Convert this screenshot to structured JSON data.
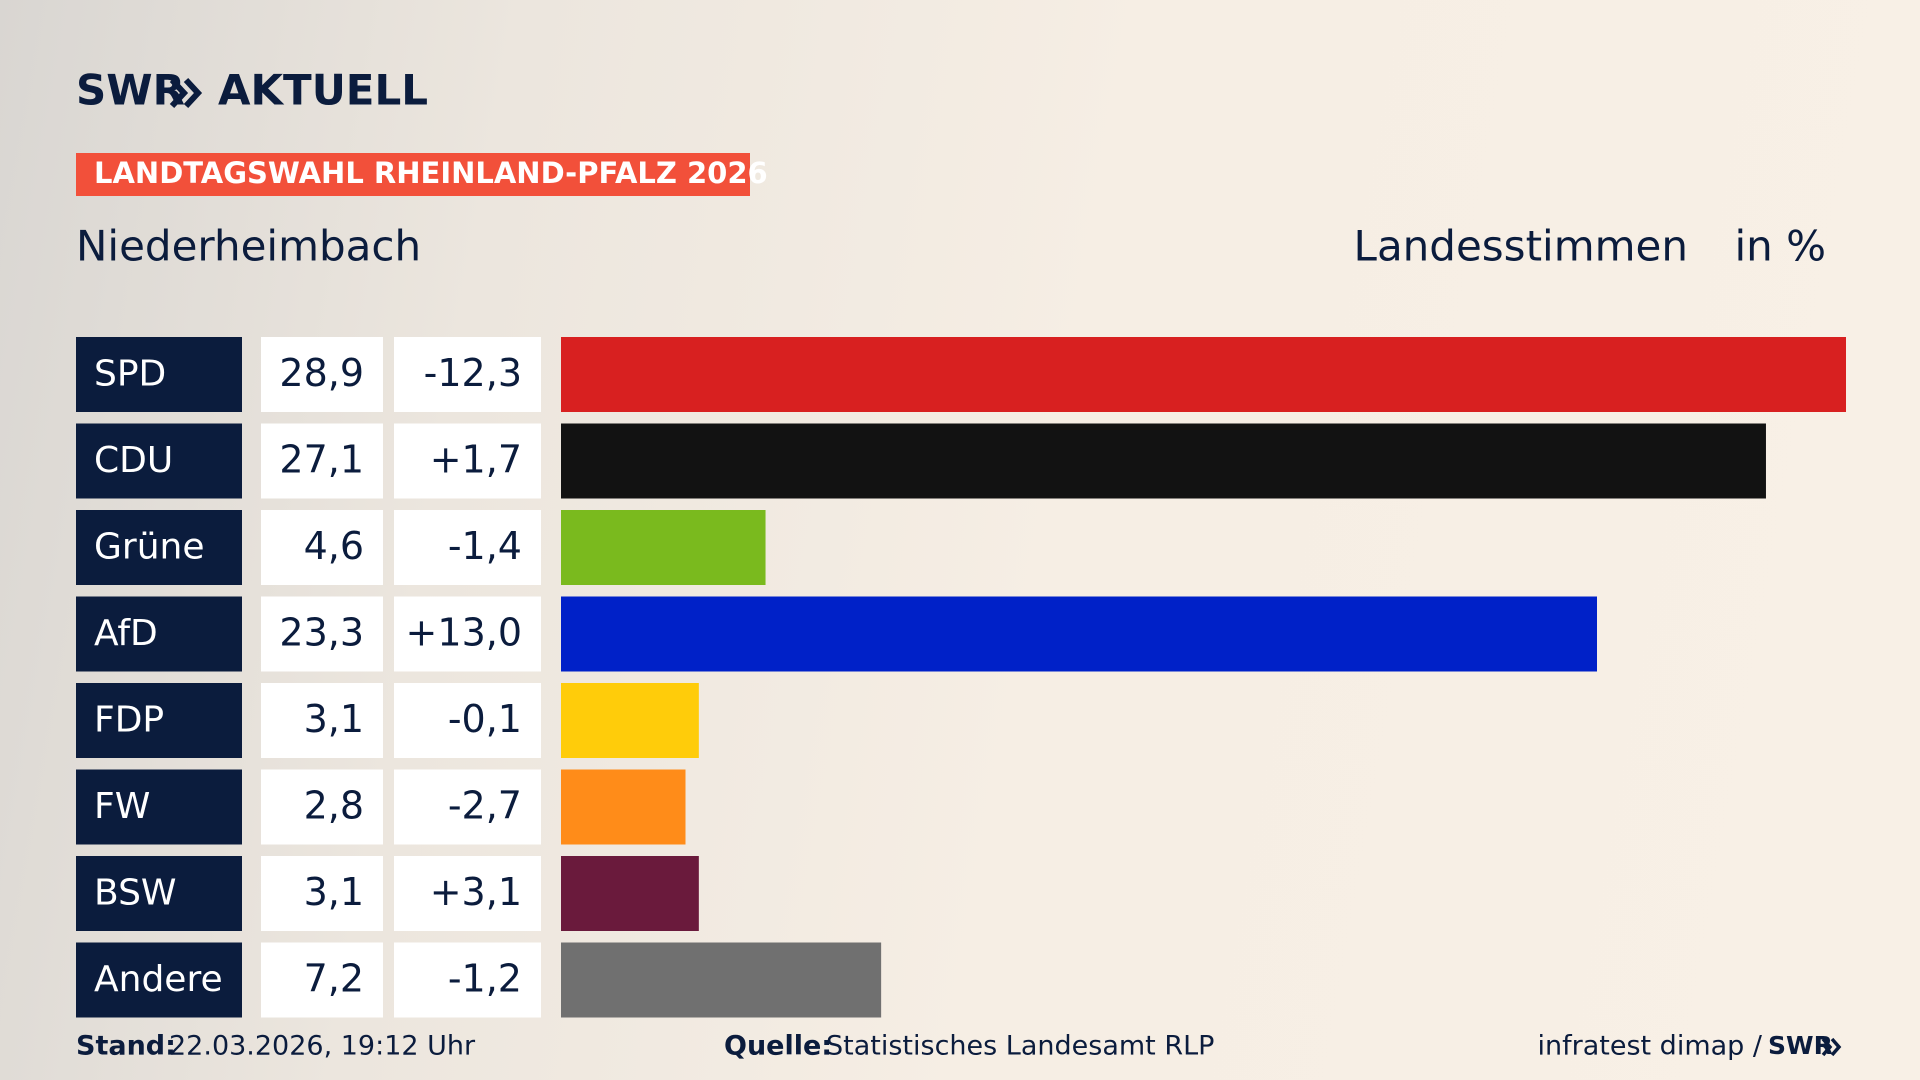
{
  "brand": {
    "name": "SWR",
    "product": "AKTUELL"
  },
  "chart_data": {
    "type": "bar",
    "orientation": "horizontal",
    "title": "LANDTAGSWAHL RHEINLAND-PFALZ 2026",
    "subtitle": "Niederheimbach",
    "measure": "Landesstimmen",
    "unit": "in %",
    "categories": [
      "SPD",
      "CDU",
      "Grüne",
      "AfD",
      "FDP",
      "FW",
      "BSW",
      "Andere"
    ],
    "values": [
      28.9,
      27.1,
      4.6,
      23.3,
      3.1,
      2.8,
      3.1,
      7.2
    ],
    "value_labels": [
      "28,9",
      "27,1",
      "4,6",
      "23,3",
      "3,1",
      "2,8",
      "3,1",
      "7,2"
    ],
    "changes": [
      -12.3,
      1.7,
      -1.4,
      13.0,
      -0.1,
      -2.7,
      3.1,
      -1.2
    ],
    "change_labels": [
      "-12,3",
      "+1,7",
      "-1,4",
      "+13,0",
      "-0,1",
      "-2,7",
      "+3,1",
      "-1,2"
    ],
    "colors": [
      "#d82020",
      "#121212",
      "#7aba1e",
      "#0021c8",
      "#ffcc0a",
      "#ff8c19",
      "#6a1a3c",
      "#707070"
    ]
  },
  "footer": {
    "stand_label": "Stand:",
    "stand": "22.03.2026, 19:12 Uhr",
    "source_label": "Quelle:",
    "source": "Statistisches Landesamt RLP",
    "credit": "infratest dimap /",
    "credit_brand": "SWR"
  }
}
